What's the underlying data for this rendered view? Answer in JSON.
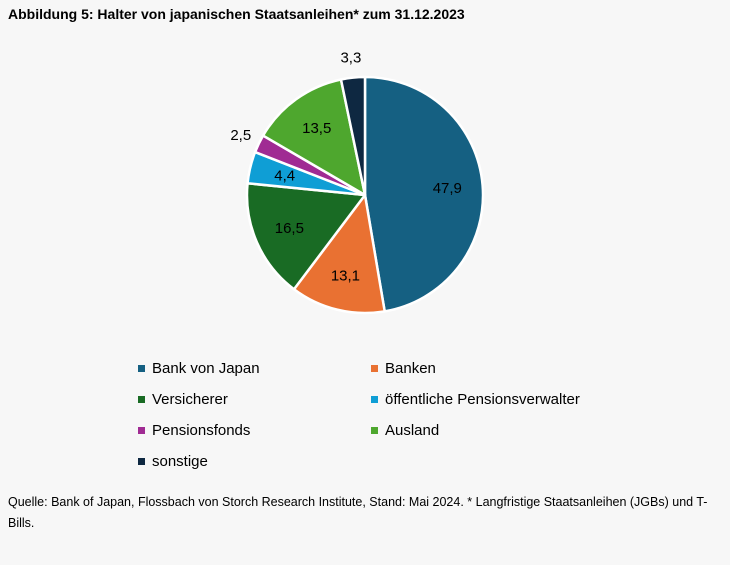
{
  "chart_data": {
    "type": "pie",
    "title": "Abbildung 5: Halter von japanischen Staatsanleihen* zum 31.12.2023",
    "slices": [
      {
        "label": "Bank von Japan",
        "value": 47.9,
        "value_label": "47,9",
        "color": "#156082"
      },
      {
        "label": "Banken",
        "value": 13.1,
        "value_label": "13,1",
        "color": "#e97132"
      },
      {
        "label": "Versicherer",
        "value": 16.5,
        "value_label": "16,5",
        "color": "#196b24"
      },
      {
        "label": "öffentliche Pensionsverwalter",
        "value": 4.4,
        "value_label": "4,4",
        "color": "#0f9ed5"
      },
      {
        "label": "Pensionsfonds",
        "value": 2.5,
        "value_label": "2,5",
        "color": "#a02b93"
      },
      {
        "label": "Ausland",
        "value": 13.5,
        "value_label": "13,5",
        "color": "#4ea72e"
      },
      {
        "label": "sonstige",
        "value": 3.3,
        "value_label": "3,3",
        "color": "#0e2841"
      }
    ],
    "legend_position": "bottom"
  },
  "source": "Quelle: Bank of Japan, Flossbach von Storch Research Institute, Stand: Mai 2024. * Langfristige Staatsanleihen (JGBs) und T-Bills."
}
